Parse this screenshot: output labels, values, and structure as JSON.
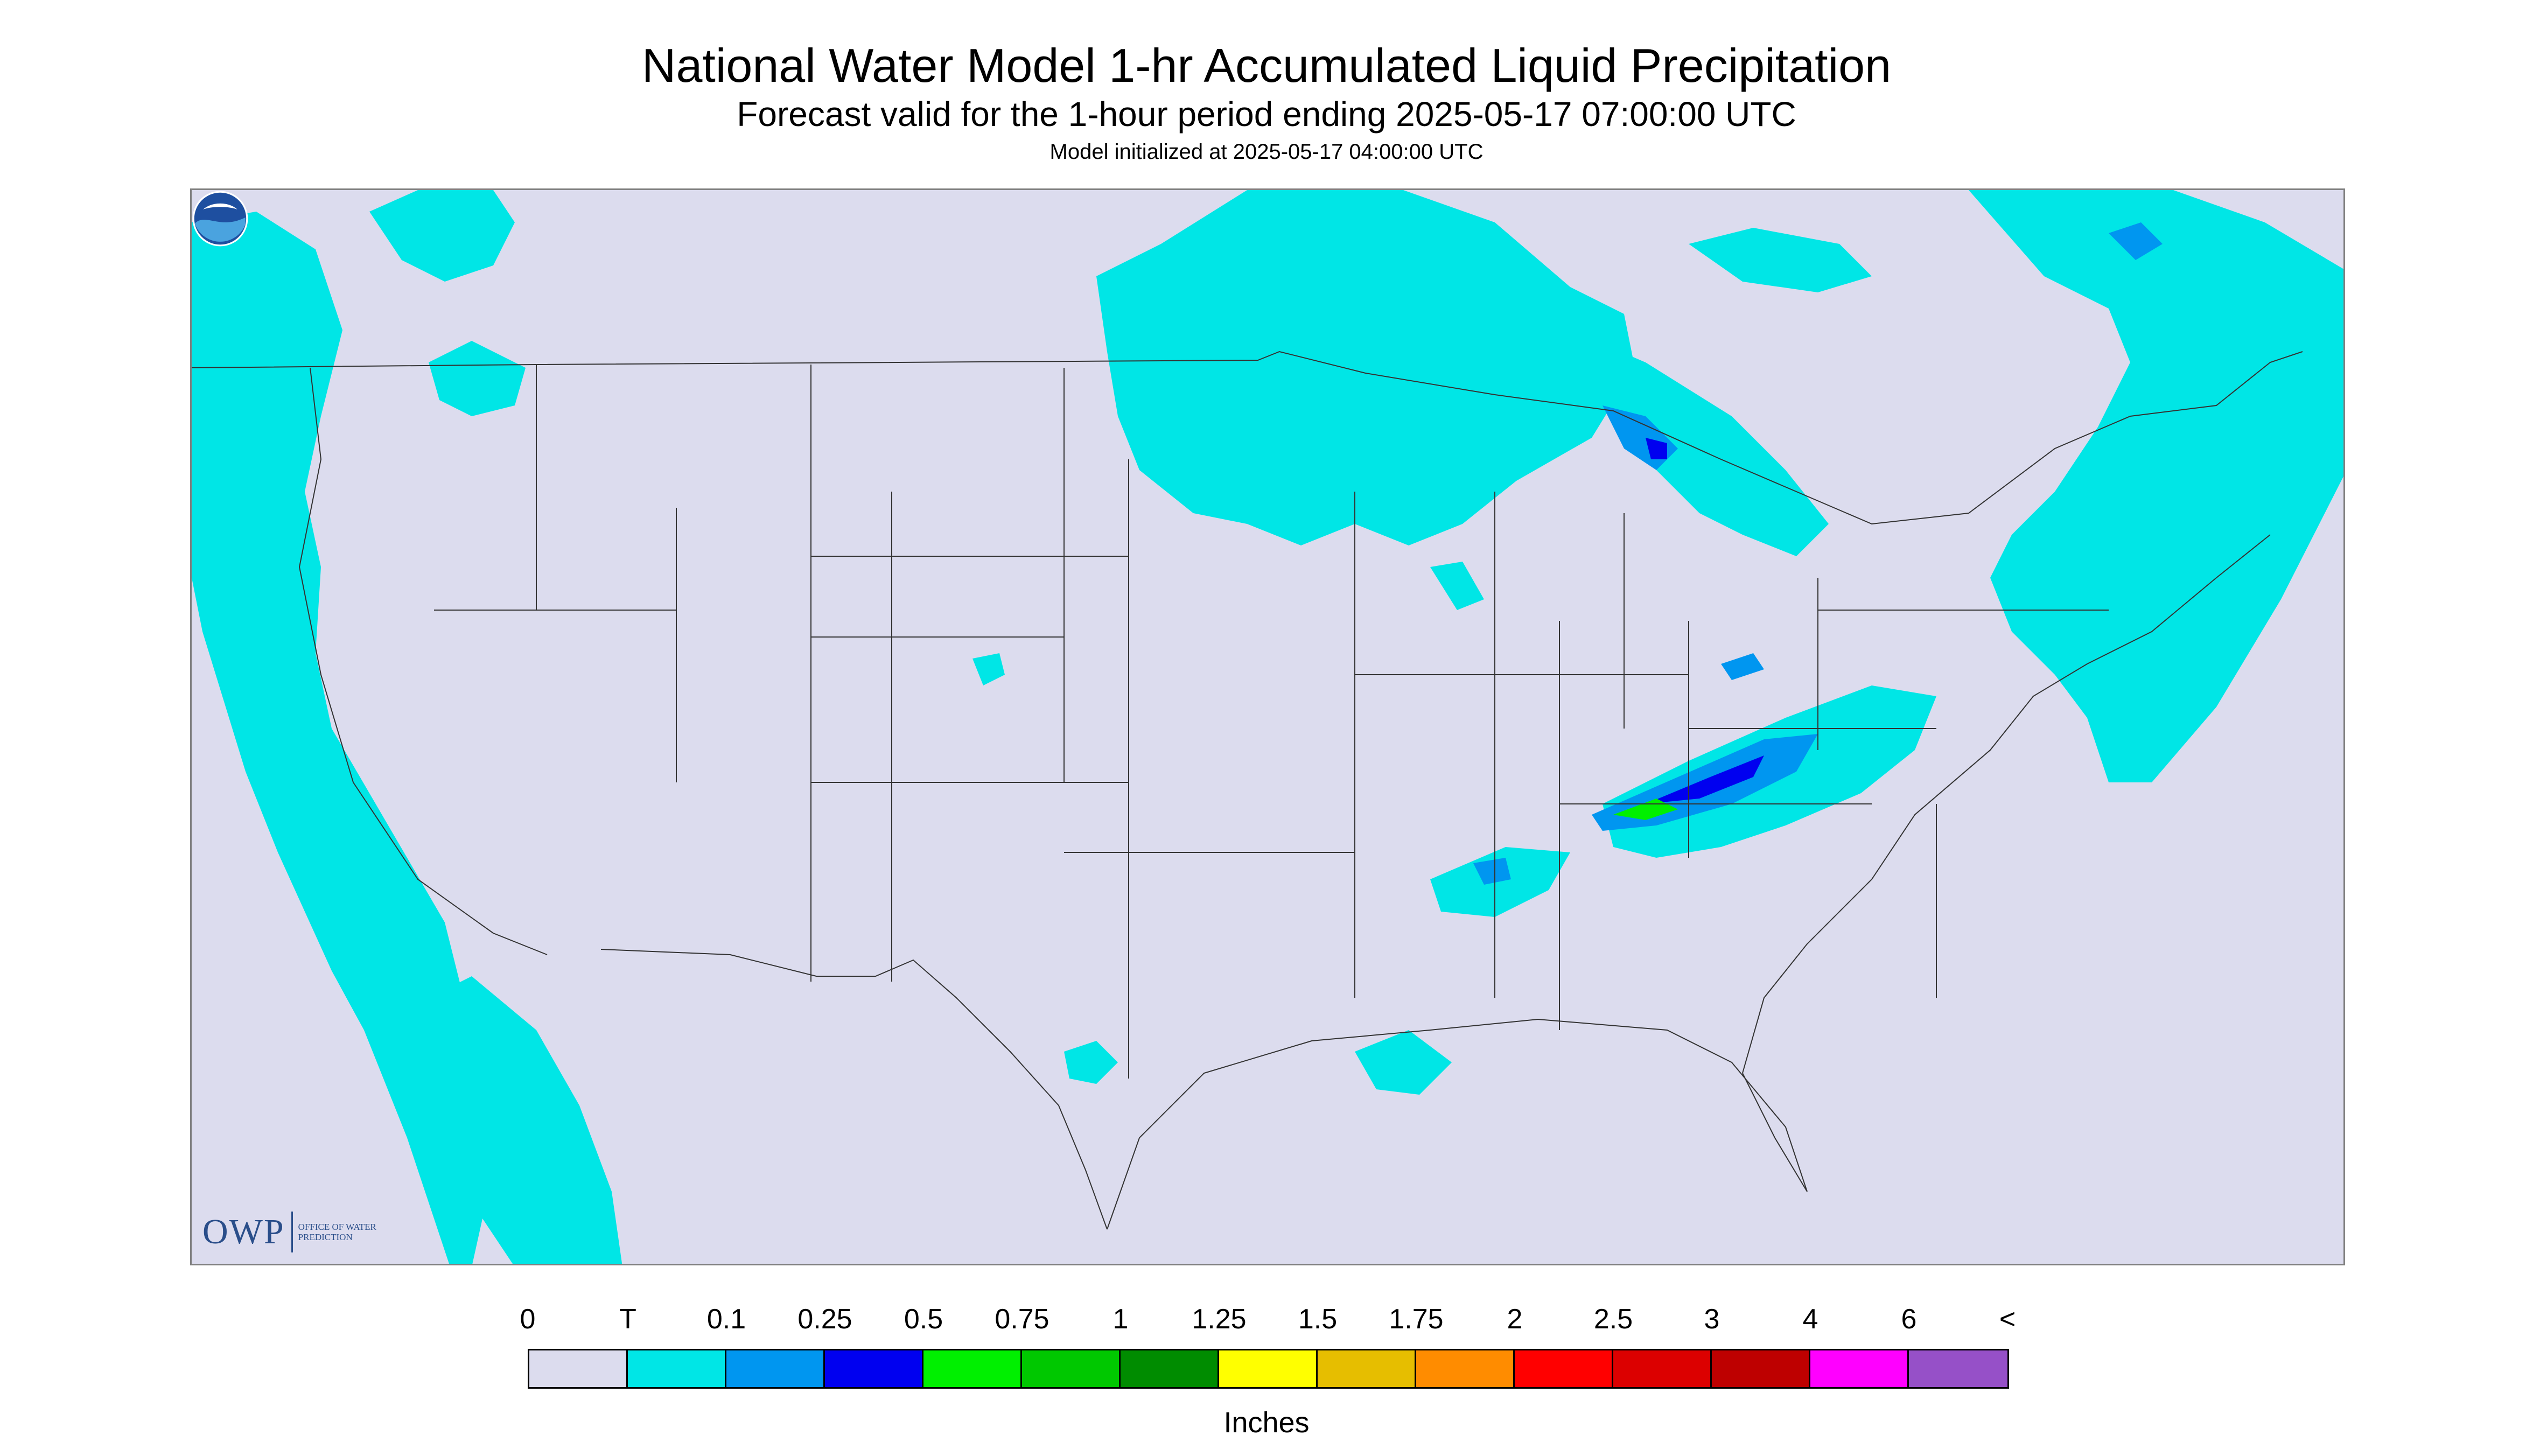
{
  "header": {
    "title": "National Water Model 1-hr Accumulated Liquid Precipitation",
    "subtitle": "Forecast valid for the 1-hour period ending 2025-05-17 07:00:00 UTC",
    "init": "Model initialized at 2025-05-17 04:00:00 UTC"
  },
  "map": {
    "background_color": "#dcdcee",
    "border_color": "#808080",
    "line_color": "#333333",
    "region": "Contiguous United States with parts of Canada and Mexico"
  },
  "logos": {
    "owp_mark": "OWP",
    "owp_text": "OFFICE OF WATER PREDICTION",
    "noaa_text": "NOAA"
  },
  "legend": {
    "labels": [
      "0",
      "T",
      "0.1",
      "0.25",
      "0.5",
      "0.75",
      "1",
      "1.25",
      "1.5",
      "1.75",
      "2",
      "2.5",
      "3",
      "4",
      "6",
      "<"
    ],
    "colors": [
      "#dcdcee",
      "#00e6e6",
      "#0096f0",
      "#0000f0",
      "#00f000",
      "#00c800",
      "#008c00",
      "#ffff00",
      "#e6be00",
      "#ff8c00",
      "#ff0000",
      "#dc0000",
      "#be0000",
      "#ff00ff",
      "#9650c8"
    ],
    "units": "Inches"
  }
}
